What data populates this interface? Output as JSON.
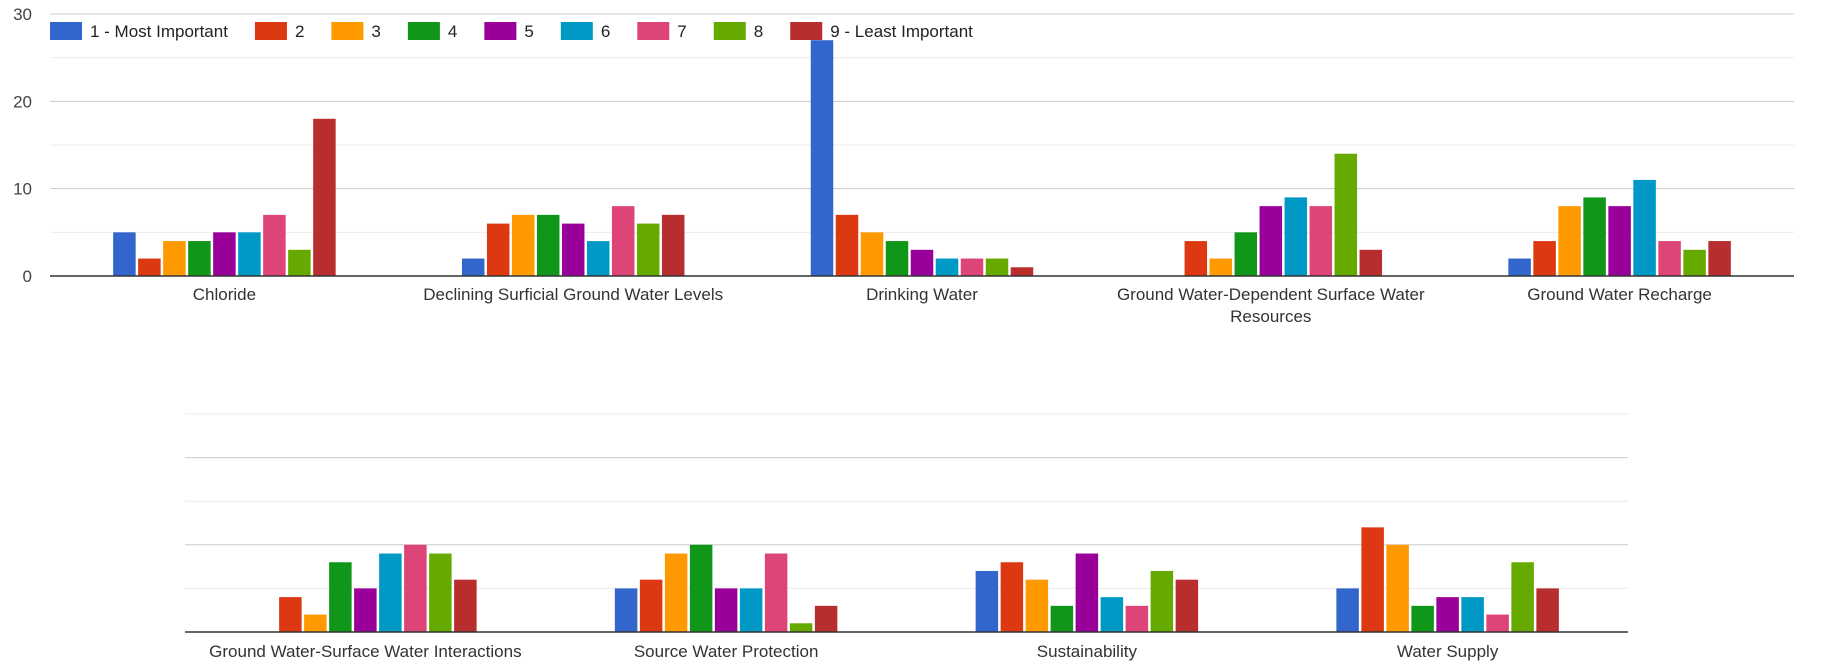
{
  "chart_data": [
    {
      "type": "bar",
      "title": "",
      "xlabel": "",
      "ylabel": "",
      "ylim": [
        0,
        30
      ],
      "yticks": [
        "0",
        "10",
        "20",
        "30"
      ],
      "grid": true,
      "legend_position": "top-left",
      "categories": [
        [
          "Chloride"
        ],
        [
          "Declining Surficial Ground Water Levels"
        ],
        [
          "Drinking Water"
        ],
        [
          "Ground Water-Dependent Surface Water",
          "Resources"
        ],
        [
          "Ground Water Recharge"
        ]
      ],
      "series": [
        {
          "name": "1 - Most Important",
          "color": "#3366cc",
          "values": [
            5,
            2,
            27,
            0,
            2
          ]
        },
        {
          "name": "2",
          "color": "#dc3912",
          "values": [
            2,
            6,
            7,
            4,
            4
          ]
        },
        {
          "name": "3",
          "color": "#ff9900",
          "values": [
            4,
            7,
            5,
            2,
            8
          ]
        },
        {
          "name": "4",
          "color": "#109618",
          "values": [
            4,
            7,
            4,
            5,
            9
          ]
        },
        {
          "name": "5",
          "color": "#990099",
          "values": [
            5,
            6,
            3,
            8,
            8
          ]
        },
        {
          "name": "6",
          "color": "#0099c6",
          "values": [
            5,
            4,
            2,
            9,
            11
          ]
        },
        {
          "name": "7",
          "color": "#dd4477",
          "values": [
            7,
            8,
            2,
            8,
            4
          ]
        },
        {
          "name": "8",
          "color": "#66aa00",
          "values": [
            3,
            6,
            2,
            14,
            3
          ]
        },
        {
          "name": "9 - Least Important",
          "color": "#b82e2e",
          "values": [
            18,
            7,
            1,
            3,
            4
          ]
        }
      ]
    },
    {
      "type": "bar",
      "title": "",
      "xlabel": "",
      "ylabel": "",
      "ylim": [
        0,
        25
      ],
      "grid": true,
      "categories": [
        [
          "Ground Water-Surface Water Interactions"
        ],
        [
          "Source Water Protection"
        ],
        [
          "Sustainability"
        ],
        [
          "Water Supply"
        ]
      ],
      "series": [
        {
          "name": "1 - Most Important",
          "color": "#3366cc",
          "values": [
            0,
            5,
            7,
            5
          ]
        },
        {
          "name": "2",
          "color": "#dc3912",
          "values": [
            4,
            6,
            8,
            12
          ]
        },
        {
          "name": "3",
          "color": "#ff9900",
          "values": [
            2,
            9,
            6,
            10
          ]
        },
        {
          "name": "4",
          "color": "#109618",
          "values": [
            8,
            10,
            3,
            3
          ]
        },
        {
          "name": "5",
          "color": "#990099",
          "values": [
            5,
            5,
            9,
            4
          ]
        },
        {
          "name": "6",
          "color": "#0099c6",
          "values": [
            9,
            5,
            4,
            4
          ]
        },
        {
          "name": "7",
          "color": "#dd4477",
          "values": [
            10,
            9,
            3,
            2
          ]
        },
        {
          "name": "8",
          "color": "#66aa00",
          "values": [
            9,
            1,
            7,
            8
          ]
        },
        {
          "name": "9 - Least Important",
          "color": "#b82e2e",
          "values": [
            6,
            3,
            6,
            5
          ]
        }
      ]
    }
  ]
}
